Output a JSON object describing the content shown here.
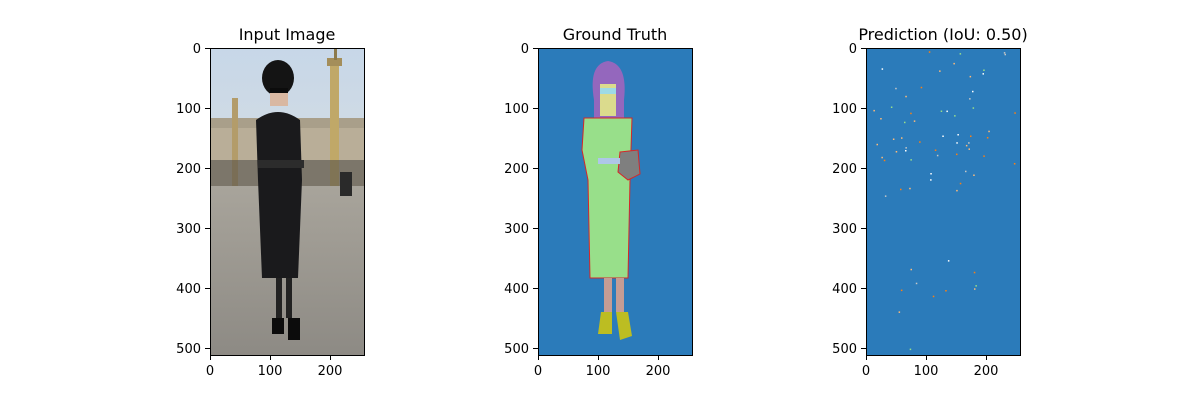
{
  "figure": {
    "panels": [
      {
        "title": "Input Image",
        "kind": "photo",
        "x_ticks": [
          "0",
          "100",
          "200"
        ],
        "y_ticks": [
          "0",
          "100",
          "200",
          "300",
          "400",
          "500"
        ]
      },
      {
        "title": "Ground Truth",
        "kind": "segmentation",
        "x_ticks": [
          "0",
          "100",
          "200"
        ],
        "y_ticks": [
          "0",
          "100",
          "200",
          "300",
          "400",
          "500"
        ]
      },
      {
        "title": "Prediction (IoU: 0.50)",
        "kind": "prediction",
        "x_ticks": [
          "0",
          "100",
          "200"
        ],
        "y_ticks": [
          "0",
          "100",
          "200",
          "300",
          "400",
          "500"
        ]
      }
    ],
    "colors": {
      "background_class": "#2b7bba",
      "clothing_class": "#98df8a",
      "hair_class": "#9467bd",
      "face_class": "#dbdb8d",
      "skin_class": "#c49c94",
      "shoes_class": "#bcbd22",
      "bag_class": "#7f7f7f",
      "sunglasses_class": "#9edae5",
      "edge_class": "#d62728"
    }
  }
}
